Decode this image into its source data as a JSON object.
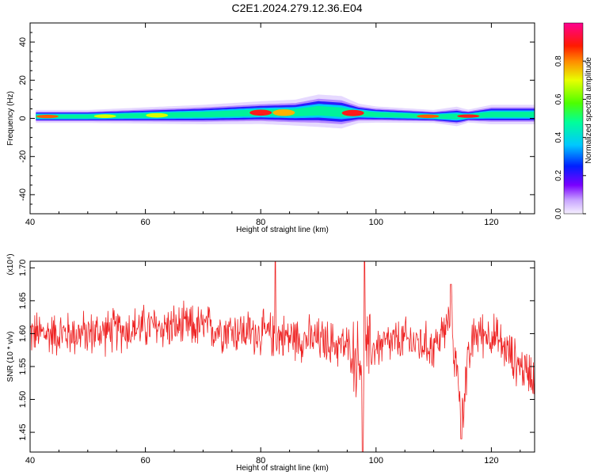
{
  "title": "C2E1.2024.279.12.36.E04",
  "colors": {
    "snr_line": "#ee2222",
    "axes": "#000000",
    "spectrogram_bg": "#ffffff"
  },
  "chart_data": [
    {
      "type": "heatmap",
      "title": "C2E1.2024.279.12.36.E04",
      "xlabel": "Height of straight line (km)",
      "ylabel": "Frequency (Hz)",
      "xlim": [
        40,
        127.5
      ],
      "ylim": [
        -50,
        50
      ],
      "x_ticks": [
        40,
        60,
        80,
        100,
        120
      ],
      "y_ticks": [
        -40,
        -20,
        0,
        20,
        40
      ],
      "colorbar": {
        "label": "Normalized spectral amplitude",
        "range": [
          0.0,
          1.0
        ],
        "ticks": [
          0.0,
          0.2,
          0.4,
          0.6,
          0.8
        ],
        "colormap": "rainbow (white-violet-blue-cyan-green-yellow-red-magenta)"
      },
      "band": {
        "center_frequency_hz": [
          [
            41,
            1
          ],
          [
            50,
            1
          ],
          [
            60,
            1.5
          ],
          [
            70,
            2
          ],
          [
            80,
            3
          ],
          [
            86,
            3
          ],
          [
            90,
            4
          ],
          [
            95,
            3
          ],
          [
            100,
            2
          ],
          [
            110,
            1
          ],
          [
            115,
            1
          ],
          [
            120,
            2
          ],
          [
            127,
            2
          ]
        ],
        "half_width_hz": [
          [
            41,
            2
          ],
          [
            50,
            2
          ],
          [
            60,
            2.5
          ],
          [
            70,
            3
          ],
          [
            80,
            3.5
          ],
          [
            86,
            4
          ],
          [
            90,
            5
          ],
          [
            94,
            5
          ],
          [
            97,
            3
          ],
          [
            100,
            2.5
          ],
          [
            110,
            2
          ],
          [
            114,
            3
          ],
          [
            116,
            2
          ],
          [
            120,
            3
          ],
          [
            127,
            3
          ]
        ],
        "peaks": [
          {
            "x": 43,
            "amplitude": 0.9
          },
          {
            "x": 53,
            "amplitude": 0.7
          },
          {
            "x": 62,
            "amplitude": 0.6
          },
          {
            "x": 80,
            "amplitude": 0.95
          },
          {
            "x": 84,
            "amplitude": 0.75
          },
          {
            "x": 96,
            "amplitude": 0.95
          },
          {
            "x": 109,
            "amplitude": 0.9
          },
          {
            "x": 116,
            "amplitude": 1.0
          }
        ]
      }
    },
    {
      "type": "line",
      "xlabel": "Height of straight line (km)",
      "ylabel": "SNR (10 * v/v)",
      "y_multiplier": "(x10⁴)",
      "xlim": [
        40,
        127.5
      ],
      "ylim": [
        1.42,
        1.71
      ],
      "x_ticks": [
        40,
        60,
        80,
        100,
        120
      ],
      "y_ticks": [
        1.45,
        1.5,
        1.55,
        1.6,
        1.65,
        1.7
      ],
      "series": [
        {
          "color": "#ee2222",
          "mean_profile": [
            [
              40,
              1.6
            ],
            [
              50,
              1.6
            ],
            [
              60,
              1.61
            ],
            [
              70,
              1.61
            ],
            [
              80,
              1.6
            ],
            [
              90,
              1.59
            ],
            [
              95,
              1.58
            ],
            [
              97,
              1.56
            ],
            [
              100,
              1.58
            ],
            [
              105,
              1.59
            ],
            [
              110,
              1.58
            ],
            [
              113,
              1.62
            ],
            [
              114,
              1.54
            ],
            [
              115,
              1.5
            ],
            [
              117,
              1.6
            ],
            [
              120,
              1.6
            ],
            [
              125,
              1.55
            ],
            [
              127,
              1.54
            ]
          ],
          "extremes": [
            {
              "x": 82.5,
              "y": 1.71
            },
            {
              "x": 98,
              "y": 1.71
            },
            {
              "x": 97.7,
              "y": 1.42
            },
            {
              "x": 114.8,
              "y": 1.44
            },
            {
              "x": 113,
              "y": 1.675
            }
          ]
        }
      ]
    }
  ]
}
